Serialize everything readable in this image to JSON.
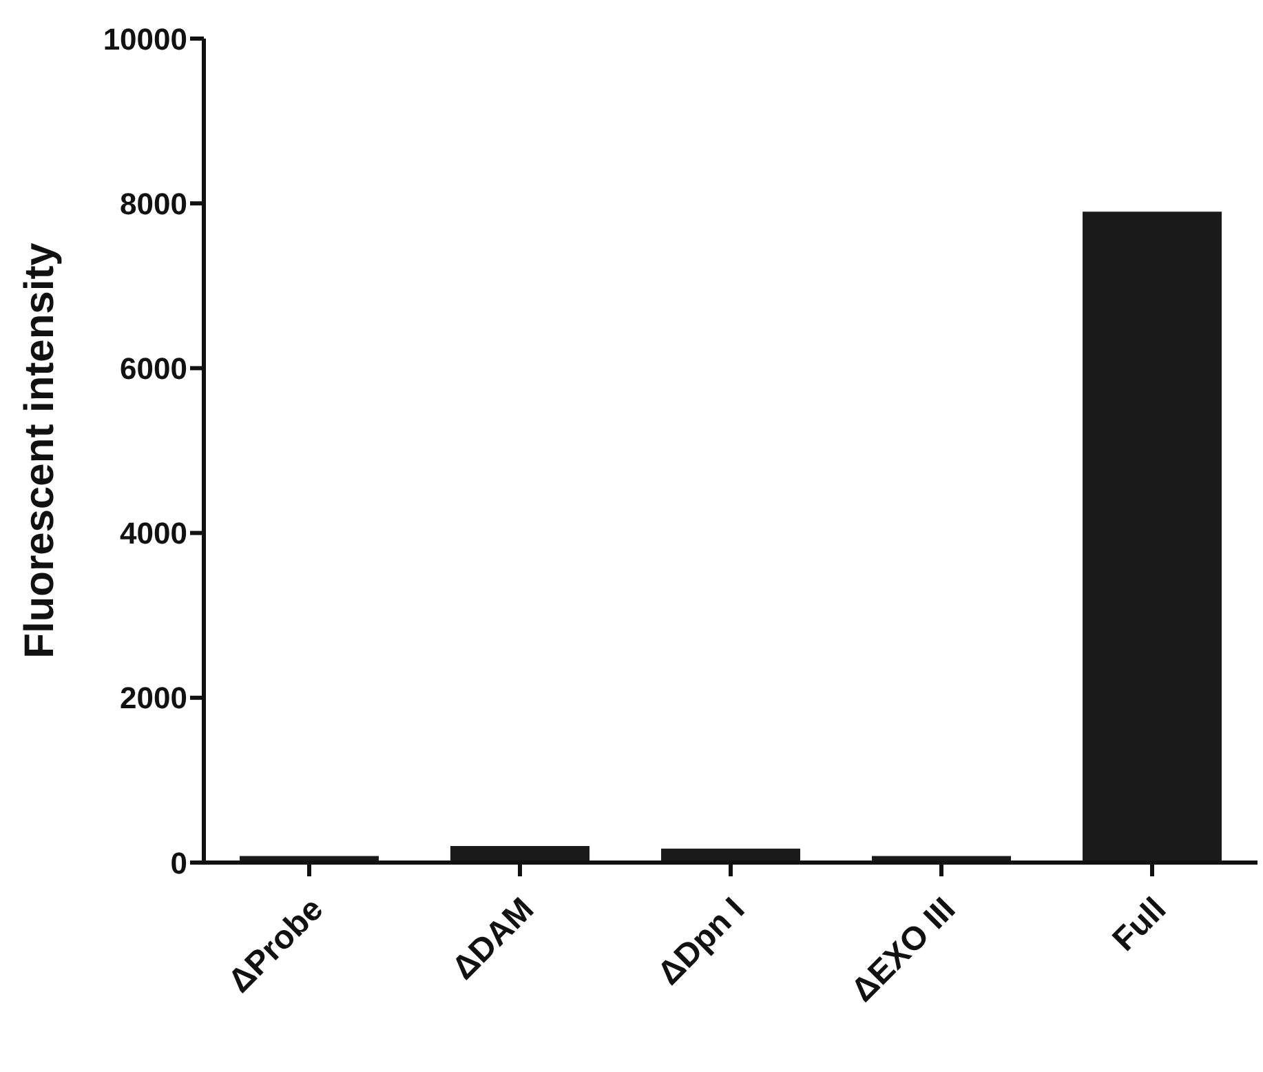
{
  "chart_data": {
    "type": "bar",
    "ylabel": "Fluorescent intensity",
    "categories": [
      "ΔProbe",
      "ΔDAM",
      "ΔDpn I",
      "ΔEXO III",
      "Full"
    ],
    "values": [
      80,
      200,
      170,
      80,
      7900
    ],
    "color": "#1a1a1a",
    "ylim": [
      0,
      10000
    ],
    "yticks": [
      0,
      2000,
      4000,
      6000,
      8000,
      10000
    ],
    "grid": false,
    "legend": false
  }
}
